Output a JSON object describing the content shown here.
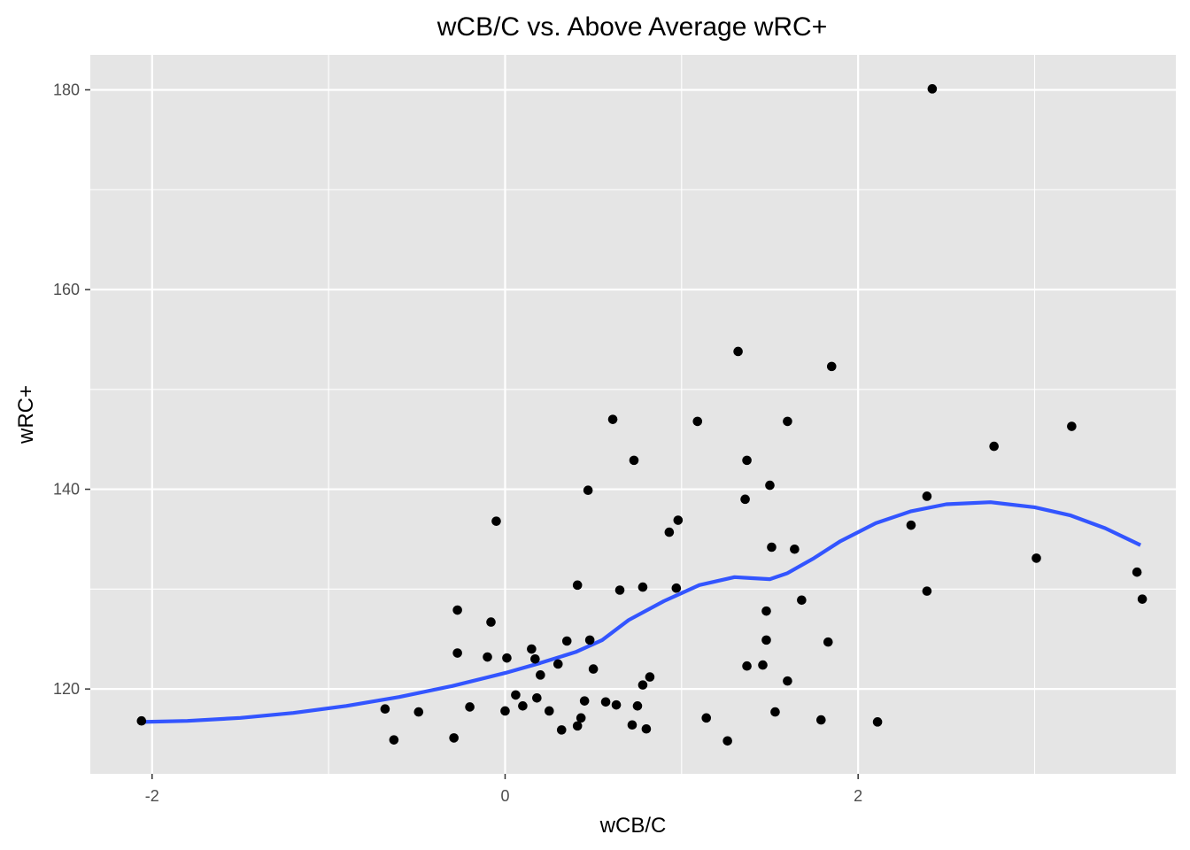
{
  "chart_data": {
    "type": "scatter",
    "title": "wCB/C vs. Above Average wRC+",
    "xlabel": "wCB/C",
    "ylabel": "wRC+",
    "xlim": [
      -2.35,
      3.8
    ],
    "ylim": [
      111.5,
      183.5
    ],
    "x_ticks": [
      -2,
      0,
      2
    ],
    "x_tick_labels": [
      "-2",
      "0",
      "2"
    ],
    "y_ticks": [
      120,
      140,
      160,
      180
    ],
    "y_tick_labels": [
      "120",
      "140",
      "160",
      "180"
    ],
    "grid": true,
    "colors": {
      "panel": "#e5e5e5",
      "grid_major": "#ffffff",
      "points": "#000000",
      "smooth_line": "#3355ff",
      "tick_text": "#4d4d4d"
    },
    "points": [
      [
        -2.06,
        116.8
      ],
      [
        -0.68,
        118.0
      ],
      [
        -0.63,
        114.9
      ],
      [
        -0.49,
        117.7
      ],
      [
        -0.29,
        115.1
      ],
      [
        -0.27,
        127.9
      ],
      [
        -0.27,
        123.6
      ],
      [
        -0.2,
        118.2
      ],
      [
        -0.1,
        123.2
      ],
      [
        -0.08,
        126.7
      ],
      [
        -0.05,
        136.8
      ],
      [
        0.0,
        117.8
      ],
      [
        0.01,
        123.1
      ],
      [
        0.06,
        119.4
      ],
      [
        0.1,
        118.3
      ],
      [
        0.15,
        124.0
      ],
      [
        0.17,
        123.0
      ],
      [
        0.18,
        119.1
      ],
      [
        0.2,
        121.4
      ],
      [
        0.25,
        117.8
      ],
      [
        0.3,
        122.5
      ],
      [
        0.32,
        115.9
      ],
      [
        0.35,
        124.8
      ],
      [
        0.41,
        116.3
      ],
      [
        0.41,
        130.4
      ],
      [
        0.43,
        117.1
      ],
      [
        0.45,
        118.8
      ],
      [
        0.47,
        139.9
      ],
      [
        0.48,
        124.9
      ],
      [
        0.5,
        122.0
      ],
      [
        0.57,
        118.7
      ],
      [
        0.61,
        147.0
      ],
      [
        0.63,
        118.4
      ],
      [
        0.65,
        129.9
      ],
      [
        0.72,
        116.4
      ],
      [
        0.73,
        142.9
      ],
      [
        0.75,
        118.3
      ],
      [
        0.78,
        120.4
      ],
      [
        0.78,
        130.2
      ],
      [
        0.8,
        116.0
      ],
      [
        0.82,
        121.2
      ],
      [
        0.93,
        135.7
      ],
      [
        0.97,
        130.1
      ],
      [
        0.98,
        136.9
      ],
      [
        1.09,
        146.8
      ],
      [
        1.14,
        117.1
      ],
      [
        1.26,
        114.8
      ],
      [
        1.32,
        153.8
      ],
      [
        1.36,
        139.0
      ],
      [
        1.37,
        142.9
      ],
      [
        1.37,
        122.3
      ],
      [
        1.46,
        122.4
      ],
      [
        1.48,
        127.8
      ],
      [
        1.48,
        124.9
      ],
      [
        1.5,
        140.4
      ],
      [
        1.51,
        134.2
      ],
      [
        1.53,
        117.7
      ],
      [
        1.6,
        120.8
      ],
      [
        1.6,
        146.8
      ],
      [
        1.64,
        134.0
      ],
      [
        1.68,
        128.9
      ],
      [
        1.79,
        116.9
      ],
      [
        1.83,
        124.7
      ],
      [
        1.85,
        152.3
      ],
      [
        2.11,
        116.7
      ],
      [
        2.3,
        136.4
      ],
      [
        2.39,
        129.8
      ],
      [
        2.39,
        139.3
      ],
      [
        2.42,
        180.1
      ],
      [
        2.77,
        144.3
      ],
      [
        3.01,
        133.1
      ],
      [
        3.21,
        146.3
      ],
      [
        3.58,
        131.7
      ],
      [
        3.61,
        129.0
      ]
    ],
    "smooth": {
      "x": [
        -2.06,
        -1.8,
        -1.5,
        -1.2,
        -0.9,
        -0.6,
        -0.3,
        0.0,
        0.2,
        0.4,
        0.55,
        0.7,
        0.9,
        1.1,
        1.3,
        1.4,
        1.5,
        1.6,
        1.75,
        1.9,
        2.1,
        2.3,
        2.5,
        2.75,
        3.0,
        3.2,
        3.4,
        3.6
      ],
      "y": [
        116.7,
        116.8,
        117.1,
        117.6,
        118.3,
        119.2,
        120.3,
        121.6,
        122.6,
        123.7,
        124.9,
        126.9,
        128.8,
        130.4,
        131.2,
        131.1,
        131.0,
        131.6,
        133.1,
        134.8,
        136.6,
        137.8,
        138.5,
        138.7,
        138.2,
        137.4,
        136.1,
        134.4
      ]
    }
  }
}
